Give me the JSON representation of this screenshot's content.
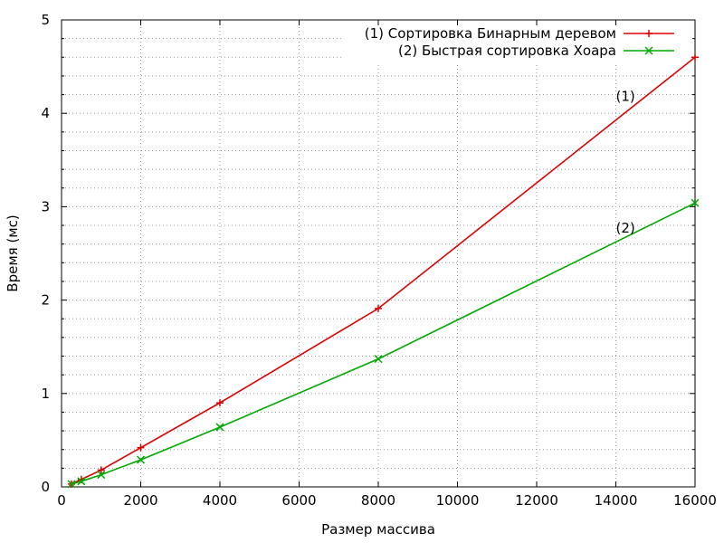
{
  "chart_data": {
    "type": "line",
    "title": "",
    "xlabel": "Размер массива",
    "ylabel": "Время (мс)",
    "xlim": [
      0,
      16000
    ],
    "ylim": [
      0,
      5
    ],
    "xticks": [
      0,
      2000,
      4000,
      6000,
      8000,
      10000,
      12000,
      14000,
      16000
    ],
    "yticks": [
      0,
      1,
      2,
      3,
      4,
      5
    ],
    "grid": true,
    "legend_position": "top-right",
    "series": [
      {
        "name": "(1) Сортировка Бинарным деревом",
        "color": "#dd0000",
        "marker": "plus",
        "x": [
          250,
          500,
          1000,
          2000,
          4000,
          8000,
          16000
        ],
        "y": [
          0.03,
          0.08,
          0.18,
          0.42,
          0.9,
          1.91,
          4.6
        ]
      },
      {
        "name": "(2) Быстрая сортировка Хоара",
        "color": "#00aa00",
        "marker": "cross",
        "x": [
          250,
          500,
          1000,
          2000,
          4000,
          8000,
          16000
        ],
        "y": [
          0.03,
          0.06,
          0.13,
          0.29,
          0.64,
          1.37,
          3.04
        ]
      }
    ],
    "annotations": [
      {
        "text": "(1)",
        "x": 14000,
        "y": 4.18
      },
      {
        "text": "(2)",
        "x": 14000,
        "y": 2.77
      }
    ]
  }
}
